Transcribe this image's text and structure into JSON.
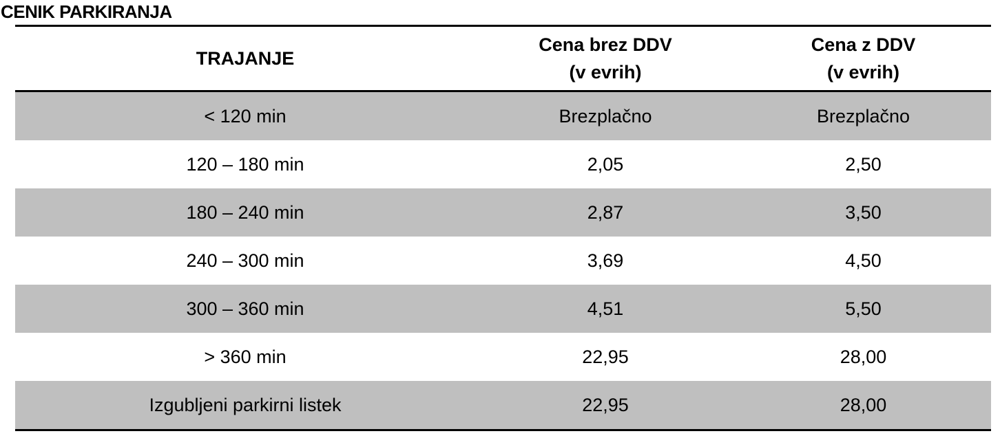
{
  "title": "CENIK PARKIRANJA",
  "table": {
    "headers": [
      {
        "line1": "TRAJANJE",
        "line2": ""
      },
      {
        "line1": "Cena brez DDV",
        "line2": "(v evrih)"
      },
      {
        "line1": "Cena z DDV",
        "line2": "(v evrih)"
      }
    ],
    "rows": [
      {
        "duration": "< 120 min",
        "price_excl_vat": "Brezplačno",
        "price_incl_vat": "Brezplačno"
      },
      {
        "duration": "120 – 180 min",
        "price_excl_vat": "2,05",
        "price_incl_vat": "2,50"
      },
      {
        "duration": "180 – 240 min",
        "price_excl_vat": "2,87",
        "price_incl_vat": "3,50"
      },
      {
        "duration": "240 – 300 min",
        "price_excl_vat": "3,69",
        "price_incl_vat": "4,50"
      },
      {
        "duration": "300 – 360 min",
        "price_excl_vat": "4,51",
        "price_incl_vat": "5,50"
      },
      {
        "duration": "> 360 min",
        "price_excl_vat": "22,95",
        "price_incl_vat": "28,00"
      },
      {
        "duration": "Izgubljeni parkirni listek",
        "price_excl_vat": "22,95",
        "price_incl_vat": "28,00"
      }
    ]
  },
  "colors": {
    "shaded_row": "#bfbfbf",
    "rule": "#000000"
  }
}
